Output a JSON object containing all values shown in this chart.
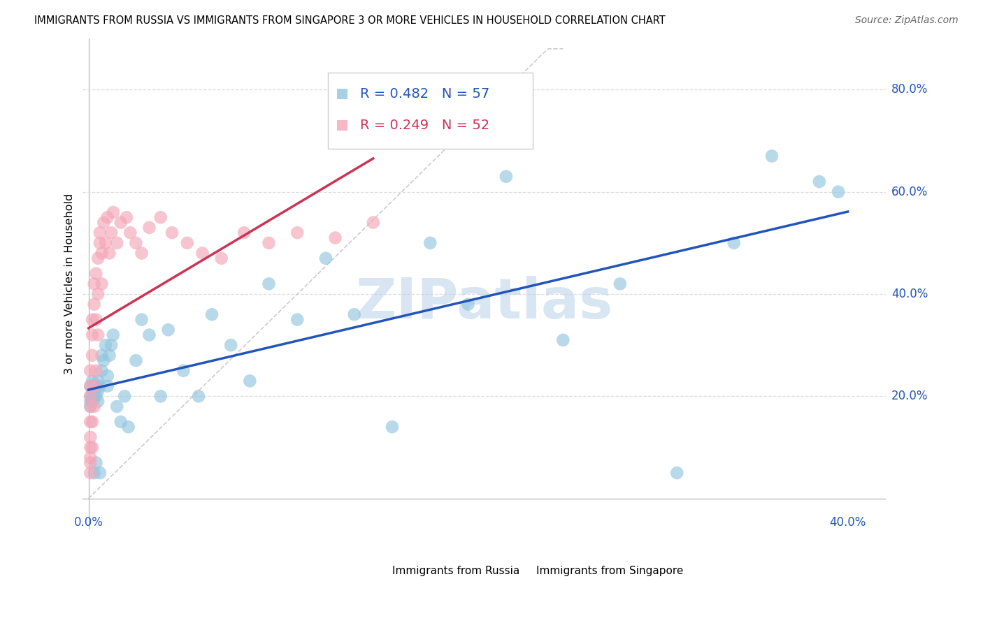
{
  "title": "IMMIGRANTS FROM RUSSIA VS IMMIGRANTS FROM SINGAPORE 3 OR MORE VEHICLES IN HOUSEHOLD CORRELATION CHART",
  "source": "Source: ZipAtlas.com",
  "ylabel": "3 or more Vehicles in Household",
  "ytick_vals": [
    0.2,
    0.4,
    0.6,
    0.8
  ],
  "ytick_labels": [
    "20.0%",
    "40.0%",
    "60.0%",
    "80.0%"
  ],
  "xlim": [
    -0.003,
    0.42
  ],
  "ylim": [
    -0.06,
    0.9
  ],
  "russia_R": 0.482,
  "russia_N": 57,
  "singapore_R": 0.249,
  "singapore_N": 52,
  "russia_color": "#92C5DE",
  "singapore_color": "#F4A6B8",
  "russia_line_color": "#2255BB",
  "singapore_line_color": "#CC3355",
  "diag_color": "#CCCCCC",
  "grid_color": "#DDDDDD",
  "watermark": "ZIPatlas",
  "russia_x": [
    0.001,
    0.001,
    0.001,
    0.001,
    0.002,
    0.002,
    0.002,
    0.002,
    0.003,
    0.003,
    0.003,
    0.004,
    0.004,
    0.004,
    0.005,
    0.005,
    0.005,
    0.006,
    0.006,
    0.007,
    0.007,
    0.008,
    0.009,
    0.01,
    0.01,
    0.011,
    0.012,
    0.013,
    0.015,
    0.017,
    0.019,
    0.021,
    0.025,
    0.028,
    0.032,
    0.038,
    0.042,
    0.05,
    0.058,
    0.065,
    0.075,
    0.085,
    0.095,
    0.11,
    0.125,
    0.14,
    0.16,
    0.18,
    0.2,
    0.22,
    0.25,
    0.28,
    0.31,
    0.34,
    0.36,
    0.385,
    0.395
  ],
  "russia_y": [
    0.22,
    0.2,
    0.18,
    0.19,
    0.21,
    0.2,
    0.23,
    0.19,
    0.22,
    0.2,
    0.05,
    0.07,
    0.22,
    0.2,
    0.19,
    0.21,
    0.23,
    0.05,
    0.22,
    0.28,
    0.25,
    0.27,
    0.3,
    0.22,
    0.24,
    0.28,
    0.3,
    0.32,
    0.18,
    0.15,
    0.2,
    0.14,
    0.27,
    0.35,
    0.32,
    0.2,
    0.33,
    0.25,
    0.2,
    0.36,
    0.3,
    0.23,
    0.42,
    0.35,
    0.47,
    0.36,
    0.14,
    0.5,
    0.38,
    0.63,
    0.31,
    0.42,
    0.05,
    0.5,
    0.67,
    0.62,
    0.6
  ],
  "singapore_x": [
    0.001,
    0.001,
    0.001,
    0.001,
    0.001,
    0.001,
    0.001,
    0.001,
    0.001,
    0.001,
    0.002,
    0.002,
    0.002,
    0.002,
    0.002,
    0.003,
    0.003,
    0.003,
    0.003,
    0.004,
    0.004,
    0.004,
    0.005,
    0.005,
    0.005,
    0.006,
    0.006,
    0.007,
    0.007,
    0.008,
    0.009,
    0.01,
    0.011,
    0.012,
    0.013,
    0.015,
    0.017,
    0.02,
    0.022,
    0.025,
    0.028,
    0.032,
    0.038,
    0.044,
    0.052,
    0.06,
    0.07,
    0.082,
    0.095,
    0.11,
    0.13,
    0.15
  ],
  "singapore_y": [
    0.07,
    0.12,
    0.15,
    0.18,
    0.2,
    0.22,
    0.25,
    0.1,
    0.08,
    0.05,
    0.28,
    0.32,
    0.35,
    0.15,
    0.1,
    0.38,
    0.42,
    0.22,
    0.18,
    0.44,
    0.35,
    0.25,
    0.47,
    0.4,
    0.32,
    0.5,
    0.52,
    0.48,
    0.42,
    0.54,
    0.5,
    0.55,
    0.48,
    0.52,
    0.56,
    0.5,
    0.54,
    0.55,
    0.52,
    0.5,
    0.48,
    0.53,
    0.55,
    0.52,
    0.5,
    0.48,
    0.47,
    0.52,
    0.5,
    0.52,
    0.51,
    0.54
  ]
}
